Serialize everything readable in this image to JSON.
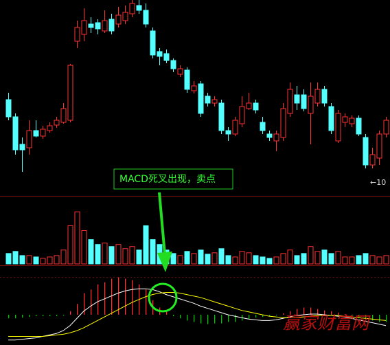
{
  "chart_data": [
    {
      "type": "candlestick",
      "open": [
        11.2,
        10.95,
        10.55,
        10.5,
        10.75,
        10.67,
        10.75,
        10.83,
        10.87,
        10.9,
        12.05,
        12.15,
        12.3,
        12.32,
        12.2,
        12.37,
        12.3,
        12.35,
        12.45,
        12.57,
        12.5,
        12.2,
        11.9,
        11.87,
        11.77,
        11.57,
        11.63,
        11.33,
        11.43,
        11.25,
        11.15,
        11.15,
        10.75,
        10.7,
        10.85,
        11.07,
        11.15,
        10.87,
        10.7,
        10.6,
        10.65,
        11.0,
        11.27,
        11.27,
        11.0,
        11.15,
        11.35,
        11.1,
        10.6,
        10.87,
        10.85,
        10.93,
        10.65,
        10.25,
        10.35,
        10.7
      ],
      "high": [
        11.3,
        11.0,
        10.65,
        10.9,
        10.9,
        10.82,
        10.87,
        10.95,
        11.15,
        11.72,
        12.35,
        12.53,
        12.4,
        12.37,
        12.5,
        12.45,
        12.55,
        12.57,
        12.65,
        12.65,
        12.6,
        12.25,
        11.95,
        11.93,
        11.8,
        11.7,
        11.67,
        11.47,
        11.47,
        11.3,
        11.25,
        11.2,
        10.8,
        10.95,
        11.25,
        11.3,
        11.2,
        10.95,
        10.75,
        10.75,
        11.15,
        11.45,
        11.4,
        11.35,
        11.45,
        11.45,
        11.4,
        11.15,
        11.05,
        11.0,
        10.97,
        10.97,
        10.7,
        10.5,
        10.75,
        10.95
      ],
      "low": [
        10.9,
        10.4,
        10.15,
        10.4,
        10.65,
        10.63,
        10.72,
        10.79,
        10.85,
        10.87,
        11.95,
        12.05,
        12.17,
        12.15,
        12.17,
        12.15,
        12.25,
        12.3,
        12.4,
        12.45,
        12.25,
        11.8,
        11.7,
        11.73,
        11.6,
        11.53,
        11.3,
        11.29,
        10.95,
        11.1,
        11.1,
        10.7,
        10.6,
        10.67,
        10.8,
        11.05,
        11.0,
        10.7,
        10.6,
        10.45,
        10.6,
        10.95,
        11.05,
        11.03,
        10.55,
        11.1,
        11.1,
        10.7,
        10.57,
        10.8,
        10.8,
        10.67,
        10.2,
        10.2,
        10.25,
        10.65
      ],
      "close": [
        10.95,
        10.47,
        10.47,
        10.75,
        10.67,
        10.77,
        10.82,
        10.9,
        11.07,
        11.7,
        12.25,
        12.35,
        12.25,
        12.23,
        12.35,
        12.2,
        12.43,
        12.47,
        12.6,
        12.5,
        12.3,
        11.85,
        11.83,
        11.77,
        11.65,
        11.65,
        11.35,
        11.4,
        11.0,
        11.15,
        11.2,
        10.75,
        10.7,
        10.9,
        11.1,
        11.15,
        11.05,
        10.75,
        10.65,
        10.7,
        11.07,
        11.35,
        11.15,
        11.07,
        11.25,
        11.35,
        11.15,
        10.75,
        11.0,
        10.95,
        10.93,
        10.7,
        10.25,
        10.4,
        10.7,
        10.9
      ],
      "up_color": "#ff3232",
      "down_color": "#54ffff",
      "ylim": [
        9.8,
        12.65
      ],
      "annotation": "MACD死叉出现，卖点",
      "low_label": "←10"
    },
    {
      "type": "bar",
      "values": [
        15,
        18,
        12,
        12,
        10,
        8,
        10,
        12,
        20,
        55,
        75,
        48,
        35,
        28,
        30,
        25,
        28,
        22,
        25,
        20,
        55,
        35,
        28,
        20,
        15,
        12,
        18,
        15,
        20,
        14,
        16,
        22,
        12,
        10,
        18,
        16,
        12,
        10,
        8,
        10,
        15,
        20,
        12,
        15,
        25,
        18,
        20,
        15,
        18,
        10,
        10,
        12,
        15,
        12,
        10,
        12
      ],
      "ylim": [
        0,
        95
      ]
    },
    {
      "type": "macd",
      "series": [
        {
          "color": "#ffffff",
          "values": [
            -0.35,
            -0.35,
            -0.34,
            -0.33,
            -0.32,
            -0.3,
            -0.28,
            -0.26,
            -0.22,
            -0.15,
            -0.05,
            0.05,
            0.12,
            0.18,
            0.22,
            0.26,
            0.3,
            0.33,
            0.35,
            0.36,
            0.36,
            0.35,
            0.32,
            0.28,
            0.25,
            0.22,
            0.19,
            0.16,
            0.12,
            0.09,
            0.06,
            0.03,
            0.0,
            -0.02,
            -0.04,
            -0.06,
            -0.07,
            -0.08,
            -0.08,
            -0.07,
            -0.05,
            -0.03,
            -0.01,
            0.0,
            0.01,
            0.01,
            0.0,
            -0.01,
            -0.02,
            -0.03,
            -0.05,
            -0.07,
            -0.09,
            -0.11,
            -0.13,
            -0.15
          ]
        },
        {
          "color": "#ffff00",
          "values": [
            -0.3,
            -0.3,
            -0.3,
            -0.3,
            -0.3,
            -0.3,
            -0.29,
            -0.28,
            -0.27,
            -0.25,
            -0.22,
            -0.18,
            -0.13,
            -0.08,
            -0.03,
            0.02,
            0.07,
            0.12,
            0.17,
            0.21,
            0.25,
            0.28,
            0.3,
            0.31,
            0.31,
            0.3,
            0.28,
            0.26,
            0.24,
            0.21,
            0.18,
            0.15,
            0.12,
            0.09,
            0.06,
            0.04,
            0.02,
            0.0,
            -0.02,
            -0.03,
            -0.04,
            -0.04,
            -0.04,
            -0.03,
            -0.02,
            -0.01,
            -0.01,
            -0.01,
            -0.01,
            -0.02,
            -0.03,
            -0.04,
            -0.05,
            -0.06,
            -0.07,
            -0.08
          ]
        }
      ],
      "histogram": {
        "up_color": "#ff3232",
        "down_color": "#00c800",
        "values": [
          -0.05,
          -0.05,
          -0.04,
          -0.03,
          -0.02,
          -0.02,
          -0.02,
          -0.02,
          -0.01,
          0.05,
          0.15,
          0.3,
          0.35,
          0.42,
          0.45,
          0.5,
          0.52,
          0.5,
          0.48,
          0.42,
          0.35,
          0.2,
          0.1,
          0.04,
          -0.02,
          -0.05,
          -0.08,
          -0.1,
          -0.12,
          -0.13,
          -0.12,
          -0.12,
          -0.1,
          -0.1,
          -0.08,
          -0.06,
          -0.04,
          -0.03,
          -0.02,
          -0.01,
          0.02,
          0.05,
          0.08,
          0.1,
          0.1,
          0.08,
          0.06,
          0.05,
          0.03,
          0.01,
          -0.02,
          -0.04,
          -0.06,
          -0.08,
          -0.1,
          -0.1
        ]
      },
      "ylim": [
        -0.4,
        0.6
      ]
    }
  ],
  "watermark": "赢家财富网"
}
